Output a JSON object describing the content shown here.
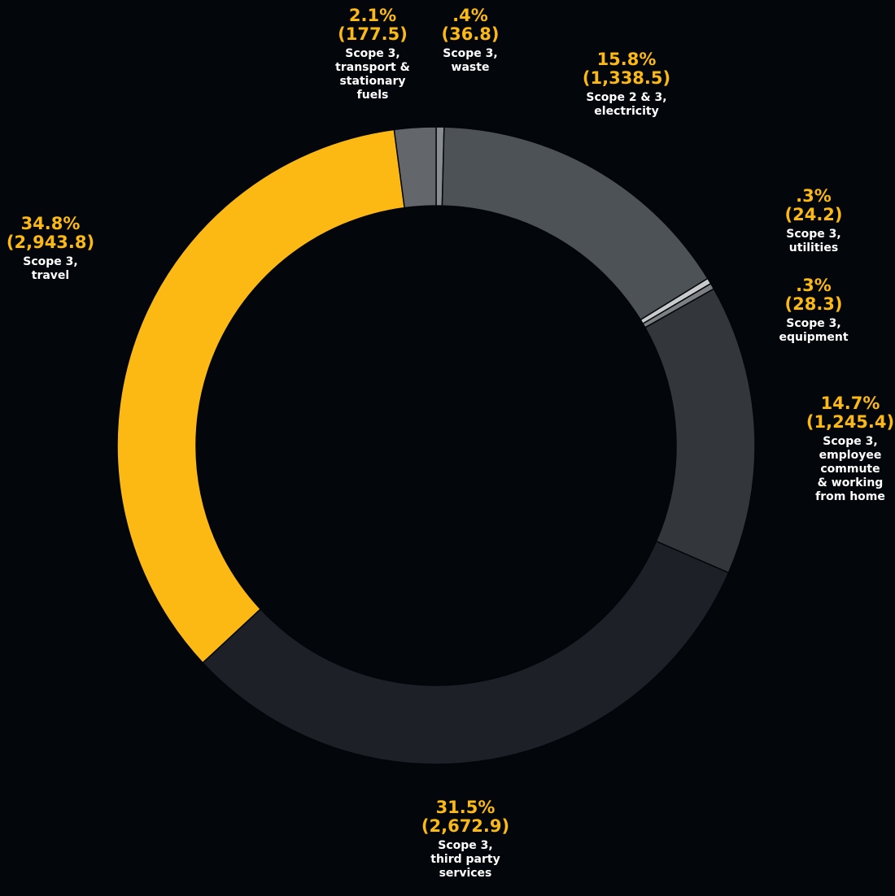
{
  "chart_data": {
    "type": "donut",
    "categories": [
      "Scope 3,\nwaste",
      "Scope 2 & 3,\nelectricity",
      "Scope 3,\nutilities",
      "Scope 3,\nequipment",
      "Scope 3,\nemployee\ncommute\n& working\nfrom home",
      "Scope 3,\nthird party\nservices",
      "Scope 3,\ntravel",
      "Scope 3,\ntransport &\nstationary\nfuels"
    ],
    "values": [
      0.4,
      15.8,
      0.3,
      0.3,
      14.7,
      31.5,
      34.8,
      2.1
    ],
    "value_labels": [
      ".4%",
      "15.8%",
      ".3%",
      ".3%",
      "14.7%",
      "31.5%",
      "34.8%",
      "2.1%"
    ],
    "amounts": [
      36.8,
      1338.5,
      24.2,
      28.3,
      1245.4,
      2672.9,
      2943.8,
      177.5
    ],
    "amount_labels": [
      "(36.8)",
      "(1,338.5)",
      "(24.2)",
      "(28.3)",
      "(1,245.4)",
      "(2,672.9)",
      "(2,943.8)",
      "(177.5)"
    ],
    "colors": [
      "#8a8d90",
      "#4d5256",
      "#c9cacb",
      "#7d8083",
      "#33373c",
      "#1d2127",
      "#fdb913",
      "#63676b"
    ]
  }
}
